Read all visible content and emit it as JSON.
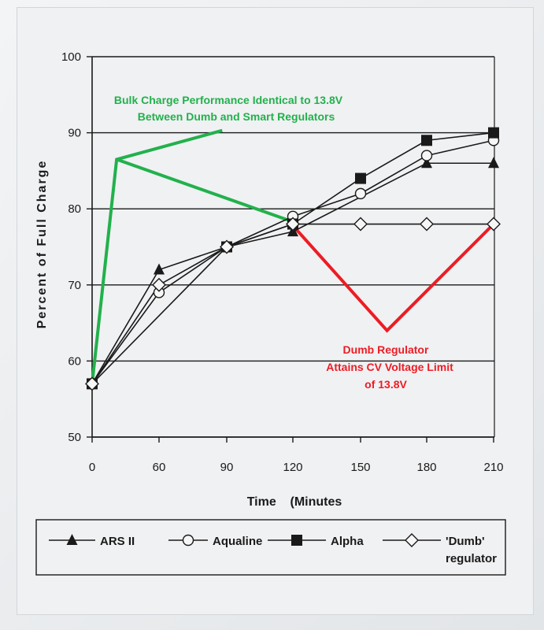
{
  "chart_data": {
    "type": "line",
    "xlabel": "Time    (Minutes",
    "ylabel": "Percent  of  Full  Charge",
    "x": [
      0,
      60,
      90,
      120,
      150,
      180,
      210
    ],
    "x_tick_labels": [
      "0",
      "60",
      "90",
      "120",
      "150",
      "180",
      "210"
    ],
    "y_ticks": [
      50,
      60,
      70,
      80,
      90,
      100
    ],
    "ylim": [
      50,
      100
    ],
    "grid": "horizontal",
    "legend_position": "bottom",
    "series": [
      {
        "name": "ARS II",
        "marker": "triangle",
        "values": [
          57,
          72,
          75,
          77,
          null,
          86,
          86
        ]
      },
      {
        "name": "Aqualine",
        "marker": "circle",
        "values": [
          57,
          69,
          75,
          79,
          82,
          87,
          89
        ]
      },
      {
        "name": "Alpha",
        "marker": "square",
        "values": [
          57,
          null,
          75,
          78,
          84,
          89,
          90
        ]
      },
      {
        "name": "'Dumb' regulator",
        "marker": "diamond",
        "values": [
          57,
          70,
          75,
          78,
          78,
          78,
          78
        ]
      }
    ],
    "annotations": {
      "green": {
        "color": "#22b14c",
        "lines": [
          "Bulk Charge Performance Identical to 13.8V",
          "Between Dumb and Smart Regulators"
        ],
        "path": [
          [
            0,
            57
          ],
          [
            22,
            86.5
          ],
          [
            88,
            90.3
          ]
        ],
        "path2": [
          [
            22,
            86.5
          ],
          [
            120,
            78.3
          ]
        ]
      },
      "red": {
        "color": "#ed1c24",
        "lines": [
          "Dumb Regulator",
          "Attains CV Voltage Limit",
          "of 13.8V"
        ],
        "path": [
          [
            120,
            77.8
          ],
          [
            162,
            64
          ],
          [
            210,
            78
          ]
        ]
      }
    }
  },
  "legend": {
    "items": [
      {
        "label": "ARS II",
        "marker": "triangle"
      },
      {
        "label": "Aqualine",
        "marker": "circle"
      },
      {
        "label": "Alpha",
        "marker": "square"
      },
      {
        "label": "'Dumb'",
        "label2": "regulator",
        "marker": "diamond"
      }
    ]
  }
}
